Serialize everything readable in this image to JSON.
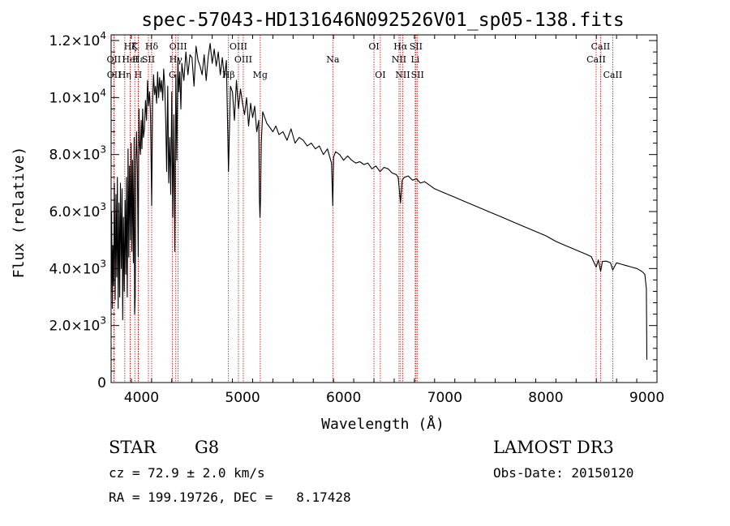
{
  "chart_data": {
    "type": "line",
    "title": "spec-57043-HD131646N092526V01_sp05-138.fits",
    "xlabel": "Wavelength (Å)",
    "ylabel": "Flux (relative)",
    "xlim": [
      3700,
      9100
    ],
    "ylim": [
      0,
      12200
    ],
    "x_ticks": [
      4000,
      5000,
      6000,
      7000,
      8000,
      9000
    ],
    "x_tick_labels": [
      "4000",
      "5000",
      "6000",
      "7000",
      "8000",
      "9000"
    ],
    "y_ticks": [
      0,
      2000,
      4000,
      6000,
      8000,
      10000,
      12000
    ],
    "y_tick_labels": [
      {
        "mantissa": "0",
        "exp": ""
      },
      {
        "mantissa": "2.0×10",
        "exp": "3"
      },
      {
        "mantissa": "4.0×10",
        "exp": "3"
      },
      {
        "mantissa": "6.0×10",
        "exp": "3"
      },
      {
        "mantissa": "8.0×10",
        "exp": "3"
      },
      {
        "mantissa": "1.0×10",
        "exp": "4"
      },
      {
        "mantissa": "1.2×10",
        "exp": "4"
      }
    ],
    "spectrum": {
      "x": [
        3700,
        3705,
        3712,
        3718,
        3725,
        3732,
        3740,
        3748,
        3755,
        3762,
        3770,
        3778,
        3785,
        3792,
        3800,
        3808,
        3815,
        3822,
        3830,
        3838,
        3845,
        3852,
        3860,
        3868,
        3875,
        3882,
        3890,
        3898,
        3905,
        3912,
        3920,
        3928,
        3933,
        3938,
        3945,
        3952,
        3960,
        3968,
        3975,
        3982,
        3990,
        3998,
        4005,
        4012,
        4020,
        4030,
        4040,
        4050,
        4060,
        4070,
        4080,
        4090,
        4101,
        4110,
        4120,
        4130,
        4140,
        4150,
        4160,
        4170,
        4180,
        4190,
        4200,
        4210,
        4220,
        4230,
        4240,
        4250,
        4260,
        4270,
        4280,
        4290,
        4300,
        4310,
        4320,
        4330,
        4340,
        4350,
        4360,
        4370,
        4380,
        4390,
        4400,
        4420,
        4440,
        4460,
        4480,
        4500,
        4520,
        4540,
        4560,
        4580,
        4600,
        4620,
        4640,
        4660,
        4680,
        4700,
        4720,
        4740,
        4760,
        4780,
        4800,
        4820,
        4840,
        4861,
        4880,
        4900,
        4920,
        4940,
        4960,
        4980,
        5000,
        5020,
        5040,
        5060,
        5080,
        5100,
        5120,
        5140,
        5160,
        5167,
        5172,
        5178,
        5185,
        5200,
        5220,
        5240,
        5260,
        5280,
        5300,
        5330,
        5360,
        5400,
        5440,
        5480,
        5520,
        5560,
        5600,
        5640,
        5680,
        5720,
        5760,
        5800,
        5840,
        5880,
        5893,
        5900,
        5920,
        5960,
        6000,
        6040,
        6080,
        6120,
        6160,
        6200,
        6240,
        6280,
        6320,
        6360,
        6400,
        6440,
        6480,
        6520,
        6540,
        6563,
        6580,
        6600,
        6640,
        6680,
        6720,
        6760,
        6800,
        6900,
        7000,
        7100,
        7200,
        7300,
        7400,
        7500,
        7600,
        7700,
        7800,
        7900,
        8000,
        8100,
        8200,
        8300,
        8400,
        8450,
        8498,
        8520,
        8542,
        8560,
        8600,
        8640,
        8662,
        8700,
        8750,
        8800,
        8850,
        8900,
        8950,
        8980,
        8995,
        9000
      ],
      "y": [
        3200,
        6000,
        2600,
        4800,
        3400,
        7000,
        2900,
        6600,
        3700,
        7200,
        2600,
        6300,
        3000,
        7000,
        4000,
        6800,
        2200,
        5800,
        3200,
        6400,
        3800,
        7200,
        3000,
        8200,
        4400,
        7600,
        5000,
        8400,
        4600,
        7800,
        4200,
        8600,
        2400,
        3000,
        7800,
        8800,
        7400,
        4400,
        9600,
        8400,
        8000,
        9200,
        8200,
        9600,
        8600,
        8900,
        9900,
        9200,
        10600,
        9700,
        10200,
        9400,
        6200,
        9800,
        10800,
        10100,
        10400,
        9800,
        10900,
        10000,
        10700,
        10200,
        10600,
        9900,
        11000,
        10400,
        9200,
        7400,
        10400,
        7000,
        8600,
        6600,
        10200,
        5800,
        9400,
        4600,
        10800,
        7800,
        11400,
        10200,
        10900,
        9600,
        11200,
        10600,
        11600,
        10800,
        11500,
        11400,
        10400,
        11800,
        11300,
        11100,
        10800,
        11500,
        10600,
        11400,
        11900,
        11200,
        11700,
        11100,
        11600,
        10800,
        11400,
        10700,
        11300,
        7400,
        10400,
        10200,
        9200,
        10600,
        9600,
        10300,
        9800,
        9400,
        10000,
        9000,
        9800,
        9300,
        9700,
        8800,
        9200,
        6500,
        5800,
        6400,
        8400,
        9500,
        9300,
        9100,
        9000,
        8900,
        8800,
        9000,
        8700,
        8800,
        8500,
        8900,
        8400,
        8600,
        8500,
        8300,
        8400,
        8200,
        8300,
        8000,
        8200,
        7700,
        6200,
        7900,
        8100,
        8000,
        7800,
        7950,
        7800,
        7700,
        7750,
        7650,
        7700,
        7500,
        7600,
        7400,
        7550,
        7500,
        7350,
        7300,
        7200,
        6300,
        7100,
        7200,
        7250,
        7100,
        7150,
        7000,
        7050,
        6800,
        6650,
        6500,
        6350,
        6200,
        6050,
        5900,
        5750,
        5600,
        5450,
        5300,
        5150,
        4950,
        4800,
        4650,
        4500,
        4420,
        4050,
        4300,
        3900,
        4250,
        4260,
        4200,
        3950,
        4200,
        4150,
        4100,
        4050,
        4000,
        3900,
        3800,
        3300,
        800
      ]
    },
    "lines": [
      {
        "label": "Hδ",
        "wave": 4101,
        "row": 1
      },
      {
        "label": "Hγ",
        "wave": 4340,
        "row": 2
      },
      {
        "label": "Hβ",
        "wave": 4861,
        "row": 3
      },
      {
        "label": "Hα",
        "wave": 6563,
        "row": 1
      },
      {
        "label": "Hζ",
        "wave": 3889,
        "row": 1
      },
      {
        "label": "Hε",
        "wave": 3970,
        "row": 2
      },
      {
        "label": "Hη",
        "wave": 3835,
        "row": 3
      },
      {
        "label": "OII",
        "wave": 3727,
        "row": 2
      },
      {
        "label": "OII",
        "wave": 3729,
        "row": 3
      },
      {
        "label": "HeI",
        "wave": 3889,
        "row": 2
      },
      {
        "label": "K",
        "wave": 3934,
        "row": 1
      },
      {
        "label": "H",
        "wave": 3968,
        "row": 3
      },
      {
        "label": "SII",
        "wave": 4069,
        "row": 2
      },
      {
        "label": "G",
        "wave": 4305,
        "row": 3
      },
      {
        "label": "OIII",
        "wave": 4363,
        "row": 1
      },
      {
        "label": "OIII",
        "wave": 4959,
        "row": 1
      },
      {
        "label": "OIII",
        "wave": 5007,
        "row": 2
      },
      {
        "label": "Mg",
        "wave": 5175,
        "row": 3
      },
      {
        "label": "Na",
        "wave": 5893,
        "row": 2
      },
      {
        "label": "OI",
        "wave": 6300,
        "row": 1
      },
      {
        "label": "OI",
        "wave": 6363,
        "row": 3
      },
      {
        "label": "NII",
        "wave": 6548,
        "row": 2
      },
      {
        "label": "NII",
        "wave": 6584,
        "row": 3
      },
      {
        "label": "SII",
        "wave": 6716,
        "row": 1
      },
      {
        "label": "Li",
        "wave": 6708,
        "row": 2
      },
      {
        "label": "SII",
        "wave": 6731,
        "row": 3
      },
      {
        "label": "CaII",
        "wave": 8498,
        "row": 2
      },
      {
        "label": "CaII",
        "wave": 8542,
        "row": 1
      },
      {
        "label": "CaII",
        "wave": 8662,
        "row": 3
      }
    ],
    "colors": {
      "spectrum": "#000000",
      "lines": "#cc0000",
      "axes": "#000000"
    }
  },
  "info": {
    "class_label": "STAR",
    "subclass": "G8",
    "survey": "LAMOST DR3",
    "cz_text": "cz = 72.9 ± 2.0 km/s",
    "obs_date": "Obs-Date: 20150120",
    "radec_text": "RA = 199.19726, DEC =   8.17428"
  }
}
